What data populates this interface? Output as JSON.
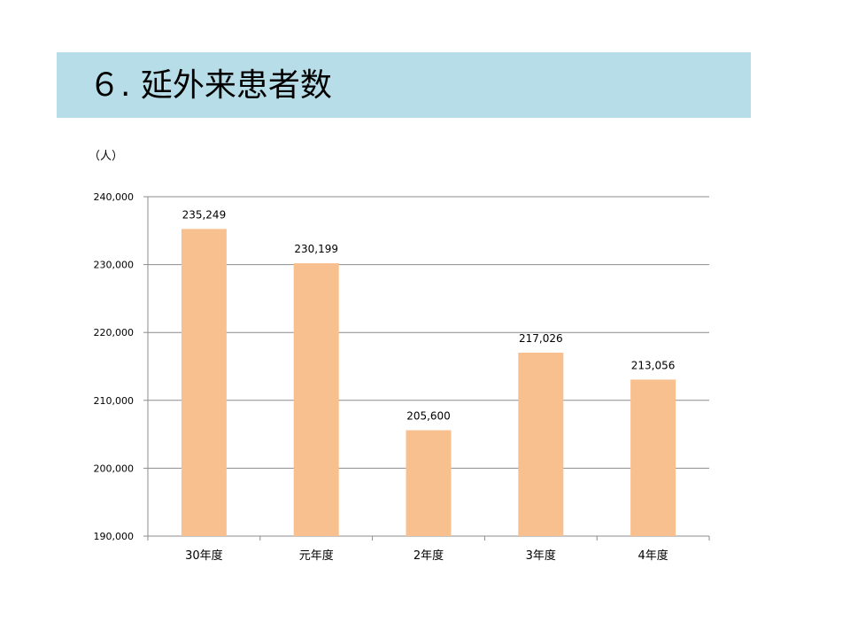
{
  "title": "６. 延外来患者数",
  "chart_data": {
    "type": "bar",
    "unit_label": "（人）",
    "categories": [
      "30年度",
      "元年度",
      "2年度",
      "3年度",
      "4年度"
    ],
    "values": [
      235249,
      230199,
      205600,
      217026,
      213056
    ],
    "data_labels": [
      "235,249",
      "230,199",
      "205,600",
      "217,026",
      "213,056"
    ],
    "ylim": [
      190000,
      240000
    ],
    "yticks": [
      190000,
      200000,
      210000,
      220000,
      230000,
      240000
    ],
    "ytick_labels": [
      "190,000",
      "200,000",
      "210,000",
      "220,000",
      "230,000",
      "240,000"
    ],
    "grid": true,
    "bar_color": "#f9c08f",
    "grid_color": "#8c8c8c"
  },
  "colors": {
    "banner": "#b7dde8"
  }
}
